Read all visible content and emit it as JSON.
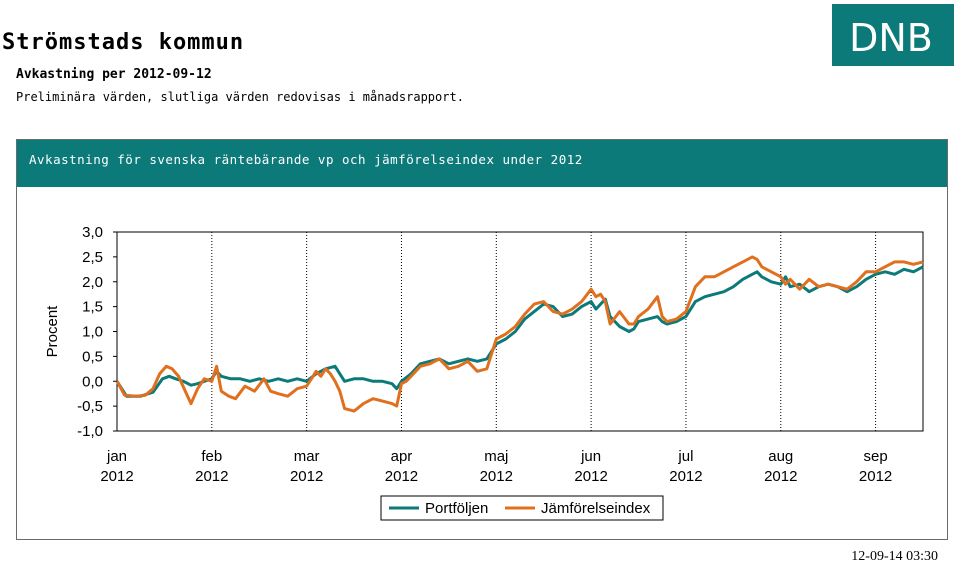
{
  "header": {
    "title": "Strömstads kommun",
    "subtitle": "Avkastning per 2012-09-12",
    "note": "Preliminära värden, slutliga värden redovisas i månadsrapport."
  },
  "logo": {
    "text": "DNB",
    "color": "#0d7a7a"
  },
  "panel": {
    "title": "Avkastning för svenska räntebärande vp och jämförelseindex under 2012",
    "header_color": "#0d7a7a"
  },
  "footer": {
    "timestamp": "12-09-14 03:30"
  },
  "chart_data": {
    "type": "line",
    "ylabel": "Procent",
    "ylim": [
      -1.0,
      3.0
    ],
    "yticks": [
      "3,0",
      "2,5",
      "2,0",
      "1,5",
      "1,0",
      "0,5",
      "0,0",
      "-0,5",
      "-1,0"
    ],
    "ytick_values": [
      3.0,
      2.5,
      2.0,
      1.5,
      1.0,
      0.5,
      0.0,
      -0.5,
      -1.0
    ],
    "xlim": [
      0,
      8.5
    ],
    "xticks": [
      {
        "month": "jan",
        "year": "2012",
        "pos": 0
      },
      {
        "month": "feb",
        "year": "2012",
        "pos": 1
      },
      {
        "month": "mar",
        "year": "2012",
        "pos": 2
      },
      {
        "month": "apr",
        "year": "2012",
        "pos": 3
      },
      {
        "month": "maj",
        "year": "2012",
        "pos": 4
      },
      {
        "month": "jun",
        "year": "2012",
        "pos": 5
      },
      {
        "month": "jul",
        "year": "2012",
        "pos": 6
      },
      {
        "month": "aug",
        "year": "2012",
        "pos": 7
      },
      {
        "month": "sep",
        "year": "2012",
        "pos": 8
      }
    ],
    "grid": "vertical",
    "legend": "bottom",
    "series": [
      {
        "name": "Portföljen",
        "color": "#0d7a7a",
        "points": [
          [
            0.0,
            0.0
          ],
          [
            0.1,
            -0.3
          ],
          [
            0.25,
            -0.3
          ],
          [
            0.38,
            -0.22
          ],
          [
            0.48,
            0.05
          ],
          [
            0.55,
            0.1
          ],
          [
            0.62,
            0.05
          ],
          [
            0.7,
            0.0
          ],
          [
            0.78,
            -0.08
          ],
          [
            0.85,
            -0.05
          ],
          [
            0.92,
            0.0
          ],
          [
            1.0,
            0.05
          ],
          [
            1.05,
            0.2
          ],
          [
            1.1,
            0.1
          ],
          [
            1.2,
            0.05
          ],
          [
            1.3,
            0.05
          ],
          [
            1.4,
            0.0
          ],
          [
            1.5,
            0.05
          ],
          [
            1.6,
            0.0
          ],
          [
            1.7,
            0.05
          ],
          [
            1.8,
            0.0
          ],
          [
            1.9,
            0.05
          ],
          [
            2.0,
            0.0
          ],
          [
            2.1,
            0.15
          ],
          [
            2.2,
            0.25
          ],
          [
            2.3,
            0.3
          ],
          [
            2.35,
            0.15
          ],
          [
            2.4,
            0.0
          ],
          [
            2.5,
            0.05
          ],
          [
            2.6,
            0.05
          ],
          [
            2.7,
            0.0
          ],
          [
            2.8,
            0.0
          ],
          [
            2.9,
            -0.05
          ],
          [
            2.95,
            -0.15
          ],
          [
            3.0,
            0.0
          ],
          [
            3.1,
            0.15
          ],
          [
            3.2,
            0.35
          ],
          [
            3.3,
            0.4
          ],
          [
            3.4,
            0.45
          ],
          [
            3.5,
            0.35
          ],
          [
            3.6,
            0.4
          ],
          [
            3.7,
            0.45
          ],
          [
            3.8,
            0.4
          ],
          [
            3.9,
            0.45
          ],
          [
            4.0,
            0.75
          ],
          [
            4.1,
            0.85
          ],
          [
            4.2,
            1.0
          ],
          [
            4.3,
            1.25
          ],
          [
            4.4,
            1.4
          ],
          [
            4.5,
            1.55
          ],
          [
            4.6,
            1.5
          ],
          [
            4.7,
            1.3
          ],
          [
            4.8,
            1.35
          ],
          [
            4.9,
            1.5
          ],
          [
            5.0,
            1.6
          ],
          [
            5.05,
            1.45
          ],
          [
            5.1,
            1.55
          ],
          [
            5.15,
            1.65
          ],
          [
            5.2,
            1.3
          ],
          [
            5.3,
            1.1
          ],
          [
            5.4,
            1.0
          ],
          [
            5.45,
            1.05
          ],
          [
            5.5,
            1.2
          ],
          [
            5.6,
            1.25
          ],
          [
            5.7,
            1.3
          ],
          [
            5.75,
            1.2
          ],
          [
            5.8,
            1.15
          ],
          [
            5.9,
            1.2
          ],
          [
            6.0,
            1.3
          ],
          [
            6.1,
            1.6
          ],
          [
            6.2,
            1.7
          ],
          [
            6.3,
            1.75
          ],
          [
            6.4,
            1.8
          ],
          [
            6.5,
            1.9
          ],
          [
            6.6,
            2.05
          ],
          [
            6.7,
            2.15
          ],
          [
            6.75,
            2.2
          ],
          [
            6.8,
            2.1
          ],
          [
            6.9,
            2.0
          ],
          [
            7.0,
            1.95
          ],
          [
            7.05,
            2.1
          ],
          [
            7.1,
            1.9
          ],
          [
            7.2,
            1.95
          ],
          [
            7.3,
            1.8
          ],
          [
            7.4,
            1.9
          ],
          [
            7.5,
            1.95
          ],
          [
            7.6,
            1.9
          ],
          [
            7.7,
            1.8
          ],
          [
            7.8,
            1.9
          ],
          [
            7.9,
            2.05
          ],
          [
            8.0,
            2.15
          ],
          [
            8.1,
            2.2
          ],
          [
            8.2,
            2.15
          ],
          [
            8.3,
            2.25
          ],
          [
            8.4,
            2.2
          ],
          [
            8.5,
            2.3
          ]
        ]
      },
      {
        "name": "Jämförelseindex",
        "color": "#e0701e",
        "points": [
          [
            0.0,
            0.0
          ],
          [
            0.08,
            -0.28
          ],
          [
            0.2,
            -0.3
          ],
          [
            0.3,
            -0.28
          ],
          [
            0.38,
            -0.15
          ],
          [
            0.45,
            0.15
          ],
          [
            0.52,
            0.3
          ],
          [
            0.58,
            0.25
          ],
          [
            0.65,
            0.1
          ],
          [
            0.72,
            -0.2
          ],
          [
            0.78,
            -0.45
          ],
          [
            0.85,
            -0.15
          ],
          [
            0.92,
            0.05
          ],
          [
            1.0,
            0.0
          ],
          [
            1.05,
            0.3
          ],
          [
            1.1,
            -0.2
          ],
          [
            1.18,
            -0.3
          ],
          [
            1.25,
            -0.35
          ],
          [
            1.35,
            -0.1
          ],
          [
            1.45,
            -0.2
          ],
          [
            1.55,
            0.05
          ],
          [
            1.62,
            -0.2
          ],
          [
            1.7,
            -0.25
          ],
          [
            1.8,
            -0.3
          ],
          [
            1.9,
            -0.15
          ],
          [
            2.0,
            -0.1
          ],
          [
            2.05,
            0.05
          ],
          [
            2.1,
            0.2
          ],
          [
            2.15,
            0.1
          ],
          [
            2.2,
            0.25
          ],
          [
            2.25,
            0.15
          ],
          [
            2.3,
            0.0
          ],
          [
            2.35,
            -0.2
          ],
          [
            2.4,
            -0.55
          ],
          [
            2.5,
            -0.6
          ],
          [
            2.6,
            -0.45
          ],
          [
            2.7,
            -0.35
          ],
          [
            2.8,
            -0.4
          ],
          [
            2.9,
            -0.45
          ],
          [
            2.95,
            -0.5
          ],
          [
            3.0,
            -0.05
          ],
          [
            3.05,
            0.0
          ],
          [
            3.1,
            0.1
          ],
          [
            3.2,
            0.3
          ],
          [
            3.3,
            0.35
          ],
          [
            3.4,
            0.45
          ],
          [
            3.5,
            0.25
          ],
          [
            3.6,
            0.3
          ],
          [
            3.7,
            0.4
          ],
          [
            3.8,
            0.2
          ],
          [
            3.9,
            0.25
          ],
          [
            4.0,
            0.85
          ],
          [
            4.1,
            0.95
          ],
          [
            4.2,
            1.1
          ],
          [
            4.3,
            1.35
          ],
          [
            4.4,
            1.55
          ],
          [
            4.5,
            1.6
          ],
          [
            4.6,
            1.4
          ],
          [
            4.7,
            1.35
          ],
          [
            4.8,
            1.45
          ],
          [
            4.9,
            1.6
          ],
          [
            5.0,
            1.85
          ],
          [
            5.05,
            1.7
          ],
          [
            5.1,
            1.75
          ],
          [
            5.15,
            1.6
          ],
          [
            5.2,
            1.15
          ],
          [
            5.3,
            1.4
          ],
          [
            5.4,
            1.15
          ],
          [
            5.45,
            1.15
          ],
          [
            5.5,
            1.3
          ],
          [
            5.6,
            1.45
          ],
          [
            5.7,
            1.7
          ],
          [
            5.75,
            1.3
          ],
          [
            5.8,
            1.2
          ],
          [
            5.9,
            1.25
          ],
          [
            6.0,
            1.4
          ],
          [
            6.1,
            1.9
          ],
          [
            6.2,
            2.1
          ],
          [
            6.3,
            2.1
          ],
          [
            6.4,
            2.2
          ],
          [
            6.5,
            2.3
          ],
          [
            6.6,
            2.4
          ],
          [
            6.7,
            2.5
          ],
          [
            6.75,
            2.45
          ],
          [
            6.8,
            2.3
          ],
          [
            6.9,
            2.2
          ],
          [
            7.0,
            2.1
          ],
          [
            7.05,
            1.95
          ],
          [
            7.1,
            2.05
          ],
          [
            7.2,
            1.85
          ],
          [
            7.3,
            2.05
          ],
          [
            7.4,
            1.9
          ],
          [
            7.5,
            1.95
          ],
          [
            7.6,
            1.9
          ],
          [
            7.7,
            1.85
          ],
          [
            7.8,
            2.0
          ],
          [
            7.9,
            2.2
          ],
          [
            8.0,
            2.2
          ],
          [
            8.1,
            2.3
          ],
          [
            8.2,
            2.4
          ],
          [
            8.3,
            2.4
          ],
          [
            8.4,
            2.35
          ],
          [
            8.5,
            2.4
          ]
        ]
      }
    ]
  }
}
